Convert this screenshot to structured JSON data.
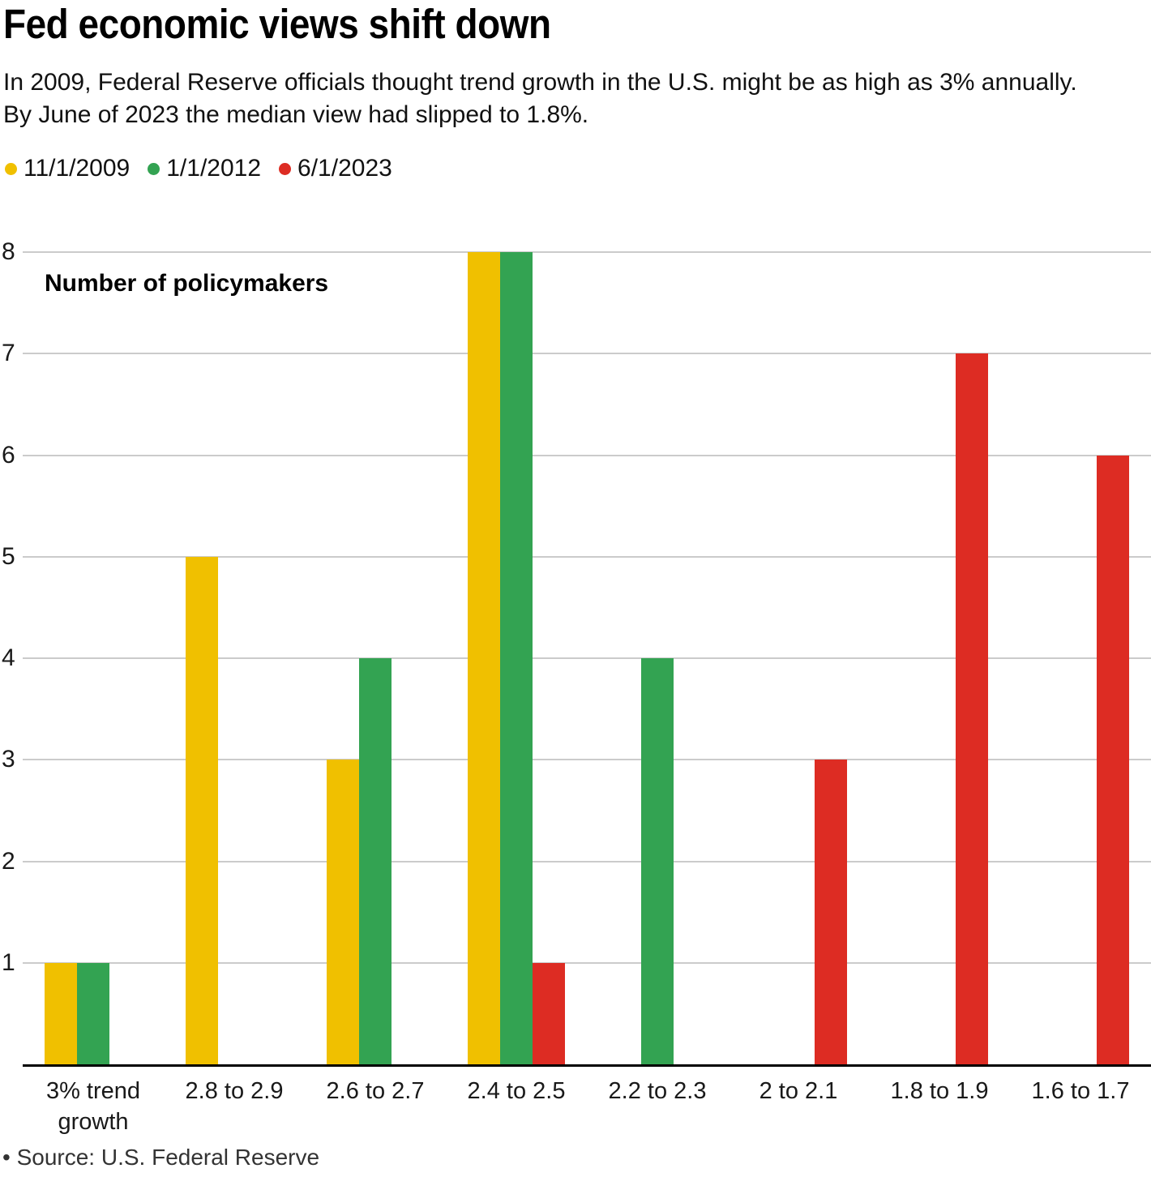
{
  "header": {
    "title": "Fed economic views shift down",
    "subtitle": "In 2009, Federal Reserve officials thought trend growth in the U.S. might be as high as 3% annually.\nBy June of 2023 the median view had slipped to 1.8%."
  },
  "footer": {
    "source": "• Source: U.S. Federal Reserve"
  },
  "chart_data": {
    "type": "bar",
    "title": "Fed economic views shift down",
    "subtitle": "In 2009, Federal Reserve officials thought trend growth in the U.S. might be as high as 3% annually. By June of 2023 the median view had slipped to 1.8%.",
    "ylabel": "Number of policymakers",
    "xlabel": "",
    "categories": [
      "3% trend growth",
      "2.8 to 2.9",
      "2.6 to 2.7",
      "2.4 to 2.5",
      "2.2 to 2.3",
      "2 to 2.1",
      "1.8 to 1.9",
      "1.6 to 1.7"
    ],
    "series": [
      {
        "name": "11/1/2009",
        "color": "#F0C000",
        "values": [
          1,
          5,
          3,
          8,
          0,
          0,
          0,
          0
        ]
      },
      {
        "name": "1/1/2012",
        "color": "#33A352",
        "values": [
          1,
          0,
          4,
          8,
          4,
          0,
          0,
          0
        ]
      },
      {
        "name": "6/1/2023",
        "color": "#DD2C23",
        "values": [
          0,
          0,
          0,
          1,
          0,
          3,
          7,
          6
        ]
      }
    ],
    "ylim": [
      0,
      8
    ],
    "yticks": [
      1,
      2,
      3,
      4,
      5,
      6,
      7,
      8
    ],
    "grid": true,
    "legend_position": "top-left",
    "gridline_color": "#cbcbcb",
    "axis_color": "#000000",
    "source": "• Source: U.S. Federal Reserve"
  }
}
